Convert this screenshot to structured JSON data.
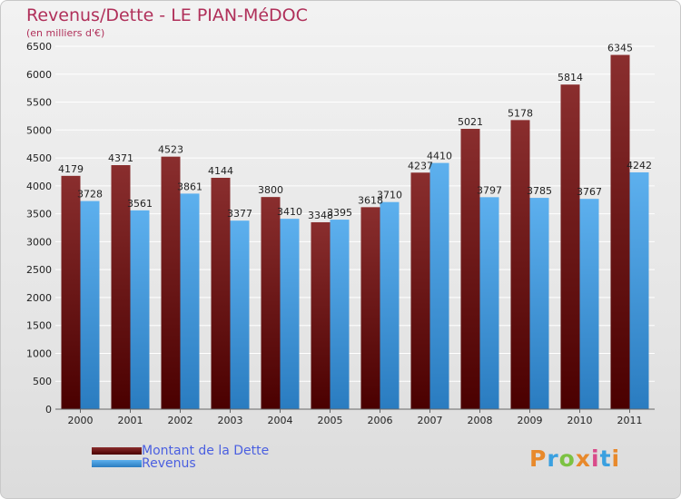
{
  "header": {
    "title": "Revenus/Dette - LE PIAN-MéDOC",
    "subtitle": "(en milliers d'€)"
  },
  "colors": {
    "debt": "#7a1f1f",
    "debt_dark": "#4a0000",
    "revenue": "#56aaea",
    "revenue_dark": "#2a7cc0",
    "text_accent": "#b0305a",
    "legend_text": "#4a5fe0"
  },
  "legend": {
    "debt_label": "Montant de la Dette",
    "revenue_label": "Revenus"
  },
  "logo": {
    "text": "Proxiti"
  },
  "chart_data": {
    "type": "bar",
    "title": "Revenus/Dette - LE PIAN-MéDOC",
    "ylabel": "(en milliers d'€)",
    "xlabel": "",
    "ylim": [
      0,
      6500
    ],
    "yticks": [
      0,
      500,
      1000,
      1500,
      2000,
      2500,
      3000,
      3500,
      4000,
      4500,
      5000,
      5500,
      6000,
      6500
    ],
    "grid": true,
    "legend_position": "bottom-left",
    "categories": [
      "2000",
      "2001",
      "2002",
      "2003",
      "2004",
      "2005",
      "2006",
      "2007",
      "2008",
      "2009",
      "2010",
      "2011"
    ],
    "series": [
      {
        "name": "Montant de la Dette",
        "values": [
          4179,
          4371,
          4523,
          4144,
          3800,
          3348,
          3618,
          4237,
          5021,
          5178,
          5814,
          6345
        ]
      },
      {
        "name": "Revenus",
        "values": [
          3728,
          3561,
          3861,
          3377,
          3410,
          3395,
          3710,
          4410,
          3797,
          3785,
          3767,
          4242
        ]
      }
    ]
  }
}
